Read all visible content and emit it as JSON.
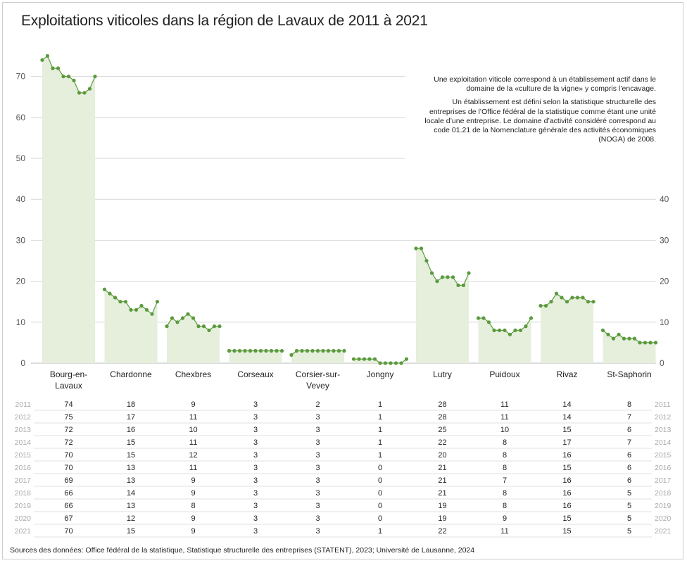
{
  "title": "Exploitations viticoles dans la région de Lavaux de 2011 à 2021",
  "notes": [
    "Une exploitation viticole correspond à un établissement actif dans le domaine de la «culture de la vigne» y compris l’encavage.",
    "Un établissement est défini selon la statistique structurelle des entreprises de l’Office fédéral de la statistique comme étant une unité locale d’une entreprise. Le domaine d’activité considéré correspond au code 01.21 de la Nomenclature générale des activités économiques (NOGA) de 2008."
  ],
  "source": "Sources des données: Office fédéral de la statistique, Statistique structurelle des entreprises (STATENT), 2023; Université de Lausanne, 2024",
  "colors": {
    "line": "#5a9a3c",
    "area": "#e5efdc",
    "grid": "#d6d6d6",
    "year": "#aaaaaa"
  },
  "chart_data": {
    "type": "area",
    "x": [
      "2011",
      "2012",
      "2013",
      "2014",
      "2015",
      "2016",
      "2017",
      "2018",
      "2019",
      "2020",
      "2021"
    ],
    "ylim": [
      0,
      80
    ],
    "yticks": [
      0,
      10,
      20,
      30,
      40,
      50,
      60,
      70
    ],
    "yticks_right": [
      0,
      10,
      20,
      30,
      40
    ],
    "series": [
      {
        "name": "Bourg-en-Lavaux",
        "label_lines": [
          "Bourg-en-",
          "Lavaux"
        ],
        "values": [
          74,
          75,
          72,
          72,
          70,
          70,
          69,
          66,
          66,
          67,
          70
        ]
      },
      {
        "name": "Chardonne",
        "label_lines": [
          "Chardonne"
        ],
        "values": [
          18,
          17,
          16,
          15,
          15,
          13,
          13,
          14,
          13,
          12,
          15
        ]
      },
      {
        "name": "Chexbres",
        "label_lines": [
          "Chexbres"
        ],
        "values": [
          9,
          11,
          10,
          11,
          12,
          11,
          9,
          9,
          8,
          9,
          9
        ]
      },
      {
        "name": "Corseaux",
        "label_lines": [
          "Corseaux"
        ],
        "values": [
          3,
          3,
          3,
          3,
          3,
          3,
          3,
          3,
          3,
          3,
          3
        ]
      },
      {
        "name": "Corsier-sur-Vevey",
        "label_lines": [
          "Corsier-sur-",
          "Vevey"
        ],
        "values": [
          2,
          3,
          3,
          3,
          3,
          3,
          3,
          3,
          3,
          3,
          3
        ]
      },
      {
        "name": "Jongny",
        "label_lines": [
          "Jongny"
        ],
        "values": [
          1,
          1,
          1,
          1,
          1,
          0,
          0,
          0,
          0,
          0,
          1
        ]
      },
      {
        "name": "Lutry",
        "label_lines": [
          "Lutry"
        ],
        "values": [
          28,
          28,
          25,
          22,
          20,
          21,
          21,
          21,
          19,
          19,
          22
        ]
      },
      {
        "name": "Puidoux",
        "label_lines": [
          "Puidoux"
        ],
        "values": [
          11,
          11,
          10,
          8,
          8,
          8,
          7,
          8,
          8,
          9,
          11
        ]
      },
      {
        "name": "Rivaz",
        "label_lines": [
          "Rivaz"
        ],
        "values": [
          14,
          14,
          15,
          17,
          16,
          15,
          16,
          16,
          16,
          15,
          15
        ]
      },
      {
        "name": "St-Saphorin",
        "label_lines": [
          "St-Saphorin"
        ],
        "values": [
          8,
          7,
          6,
          7,
          6,
          6,
          6,
          5,
          5,
          5,
          5
        ]
      }
    ]
  }
}
